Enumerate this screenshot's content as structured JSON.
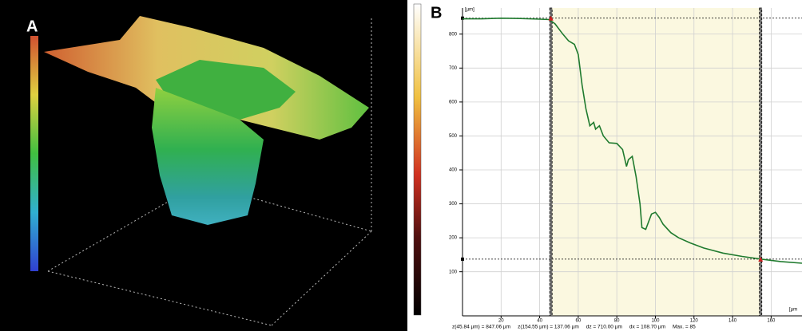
{
  "panels": [
    {
      "label": "A"
    },
    {
      "label": "B"
    }
  ],
  "chart_data": {
    "type": "line",
    "y_label": "[µm]",
    "x_label": "[µm",
    "x": [
      0,
      10,
      20,
      30,
      40,
      45,
      48,
      52,
      55,
      58,
      60,
      62,
      64,
      66,
      68,
      69,
      71,
      73,
      76,
      80,
      83,
      85,
      86,
      88,
      90,
      92,
      93,
      95,
      98,
      100,
      102,
      104,
      108,
      112,
      118,
      125,
      135,
      145,
      155,
      165,
      176
    ],
    "values": [
      845,
      845,
      847,
      846,
      844,
      843,
      830,
      800,
      780,
      770,
      740,
      650,
      580,
      530,
      540,
      520,
      530,
      500,
      480,
      478,
      460,
      410,
      430,
      440,
      380,
      300,
      230,
      225,
      270,
      275,
      260,
      240,
      215,
      200,
      185,
      170,
      155,
      145,
      137,
      130,
      125
    ],
    "color": "#1f7a2e",
    "xlim": [
      0,
      176
    ],
    "ylim": [
      -30,
      877
    ],
    "xticks": [
      20,
      40,
      60,
      80,
      100,
      120,
      140,
      160
    ],
    "yticks": [
      100,
      200,
      300,
      400,
      500,
      600,
      700,
      800
    ],
    "grid": true,
    "cursors": [
      {
        "x": 45.84,
        "z": 847.06
      },
      {
        "x": 154.55,
        "z": 137.06
      }
    ],
    "readout": [
      "z(45.84 µm) = 847.06 µm",
      "z(154.55 µm) = 137.06 µm",
      "dz = 710.00 µm",
      "dx = 108.70 µm",
      "Max. = 85"
    ]
  }
}
